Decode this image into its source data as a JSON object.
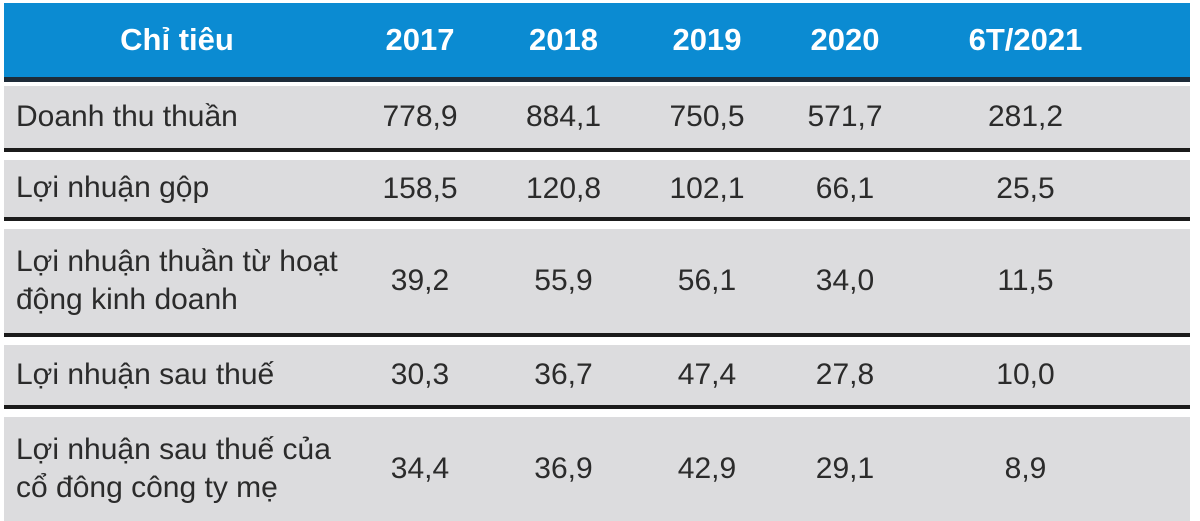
{
  "table": {
    "header": {
      "label_col": "Chỉ tiêu",
      "years": [
        "2017",
        "2018",
        "2019",
        "2020",
        "6T/2021"
      ]
    },
    "rows": [
      {
        "label": "Doanh thu thuần",
        "values": [
          "778,9",
          "884,1",
          "750,5",
          "571,7",
          "281,2"
        ]
      },
      {
        "label": "Lợi nhuận gộp",
        "values": [
          "158,5",
          "120,8",
          "102,1",
          "66,1",
          "25,5"
        ]
      },
      {
        "label": "Lợi nhuận thuần từ hoạt động kinh doanh",
        "values": [
          "39,2",
          "55,9",
          "56,1",
          "34,0",
          "11,5"
        ]
      },
      {
        "label": "Lợi nhuận sau thuế",
        "values": [
          "30,3",
          "36,7",
          "47,4",
          "27,8",
          "10,0"
        ]
      },
      {
        "label": "Lợi nhuận sau thuế  của cổ đông công ty mẹ",
        "values": [
          "34,4",
          "36,9",
          "42,9",
          "29,1",
          "8,9"
        ]
      }
    ],
    "colors": {
      "header_bg": "#0b8bd2",
      "header_text": "#ffffff",
      "header_separator": "#1e2b38",
      "row_bg": "#dcdcde",
      "row_separator": "#1b1b1b",
      "body_text": "#2b2b2b"
    }
  },
  "chart_data": {
    "type": "table",
    "title": "",
    "categories": [
      "2017",
      "2018",
      "2019",
      "2020",
      "6T/2021"
    ],
    "series": [
      {
        "name": "Doanh thu thuần",
        "values": [
          778.9,
          884.1,
          750.5,
          571.7,
          281.2
        ]
      },
      {
        "name": "Lợi nhuận gộp",
        "values": [
          158.5,
          120.8,
          102.1,
          66.1,
          25.5
        ]
      },
      {
        "name": "Lợi nhuận thuần từ hoạt động kinh doanh",
        "values": [
          39.2,
          55.9,
          56.1,
          34.0,
          11.5
        ]
      },
      {
        "name": "Lợi nhuận sau thuế",
        "values": [
          30.3,
          36.7,
          47.4,
          27.8,
          10.0
        ]
      },
      {
        "name": "Lợi nhuận sau thuế của cổ đông công ty mẹ",
        "values": [
          34.4,
          36.9,
          42.9,
          29.1,
          8.9
        ]
      }
    ],
    "header_label": "Chỉ tiêu"
  }
}
